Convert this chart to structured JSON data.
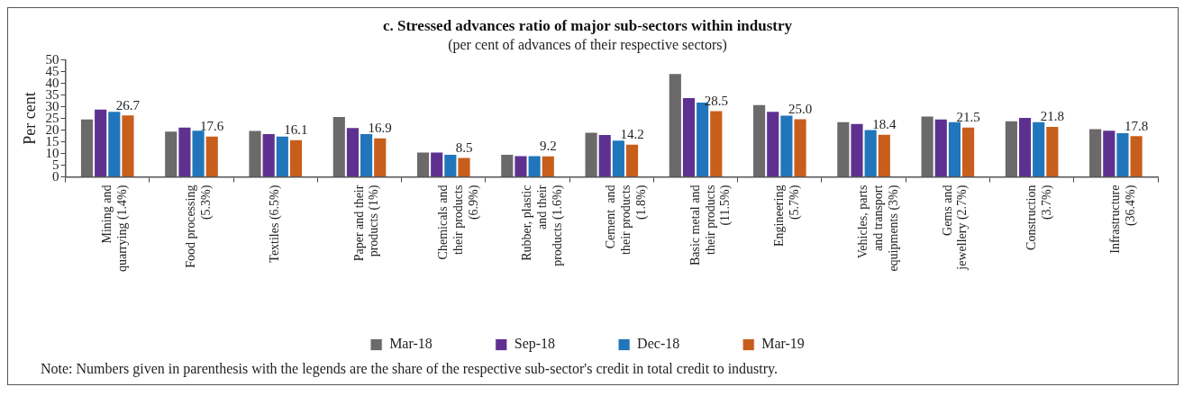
{
  "chart_data": {
    "type": "bar",
    "title": "c. Stressed advances ratio of major sub-sectors within industry",
    "subtitle": "(per cent of advances of their respective sectors)",
    "ylabel": "Per cent",
    "categories": [
      "Mining and quarrying (1.4%)",
      "Food processing (5.3%)",
      "Textiles (6.5%)",
      "Paper and their products (1%)",
      "Chemicals and their products (6.9%)",
      "Rubber, plastic and their products (1.6%)",
      "Cement  and their products (1.8%)",
      "Basic metal and their products (11.5%)",
      "Engineering (5.7%)",
      "Vehicles, parts and transport equipments (3%)",
      "Gems and jewellery (2.7%)",
      "Construction (3.7%)",
      "Infrastructure (36.4%)"
    ],
    "series": [
      {
        "name": "Mar-18",
        "color": "#6b6969",
        "values": [
          24.9,
          19.7,
          20.0,
          26.0,
          10.8,
          9.8,
          19.3,
          44.4,
          31.1,
          23.8,
          26.2,
          24.2,
          20.8
        ]
      },
      {
        "name": "Sep-18",
        "color": "#5e3191",
        "values": [
          29.2,
          21.5,
          18.7,
          21.3,
          10.8,
          9.3,
          18.3,
          34.1,
          28.2,
          23.0,
          24.9,
          25.6,
          20.1
        ]
      },
      {
        "name": "Dec-18",
        "color": "#2176bb",
        "values": [
          28.2,
          20.1,
          17.6,
          18.7,
          9.8,
          9.3,
          15.9,
          32.2,
          26.6,
          20.4,
          23.8,
          23.8,
          19.1
        ]
      },
      {
        "name": "Mar-19",
        "color": "#c85e1c",
        "values": [
          26.7,
          17.6,
          16.1,
          16.9,
          8.5,
          9.2,
          14.2,
          28.5,
          25.0,
          18.4,
          21.5,
          21.8,
          17.8
        ],
        "value_labels": [
          "26.7",
          "17.6",
          "16.1",
          "16.9",
          "8.5",
          "9.2",
          "14.2",
          "28.5",
          "25.0",
          "18.4",
          "21.5",
          "21.8",
          "17.8"
        ]
      }
    ],
    "ylim": [
      0,
      50
    ],
    "yticks": [
      0,
      5,
      10,
      15,
      20,
      25,
      30,
      35,
      40,
      45,
      50
    ],
    "grid": false,
    "legend": "bottom",
    "annotations": [
      "Note: Numbers given in parenthesis with the legends are the share of the respective sub-sector's credit in total credit to industry."
    ]
  }
}
